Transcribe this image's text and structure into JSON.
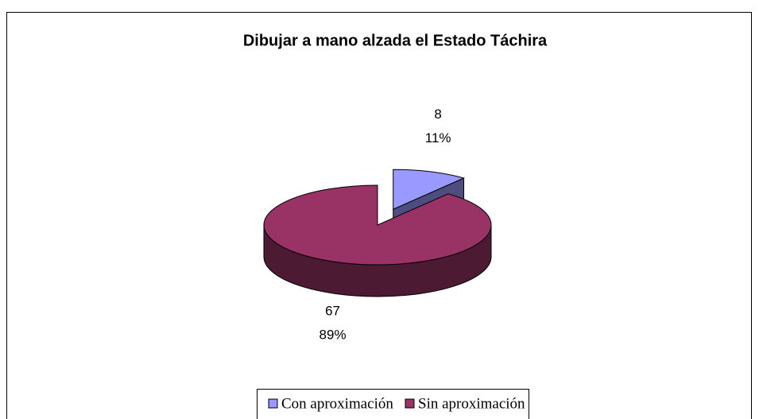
{
  "chart_data": {
    "type": "pie3d",
    "title": "Dibujar a mano alzada el Estado Táchira",
    "categories": [
      "Con aproximación",
      "Sin aproximación"
    ],
    "values": [
      8,
      67
    ],
    "percent_labels": [
      "11%",
      "89%"
    ],
    "colors": [
      "#9999ff",
      "#993366"
    ],
    "explode": [
      true,
      false
    ],
    "legend": "bottom"
  }
}
